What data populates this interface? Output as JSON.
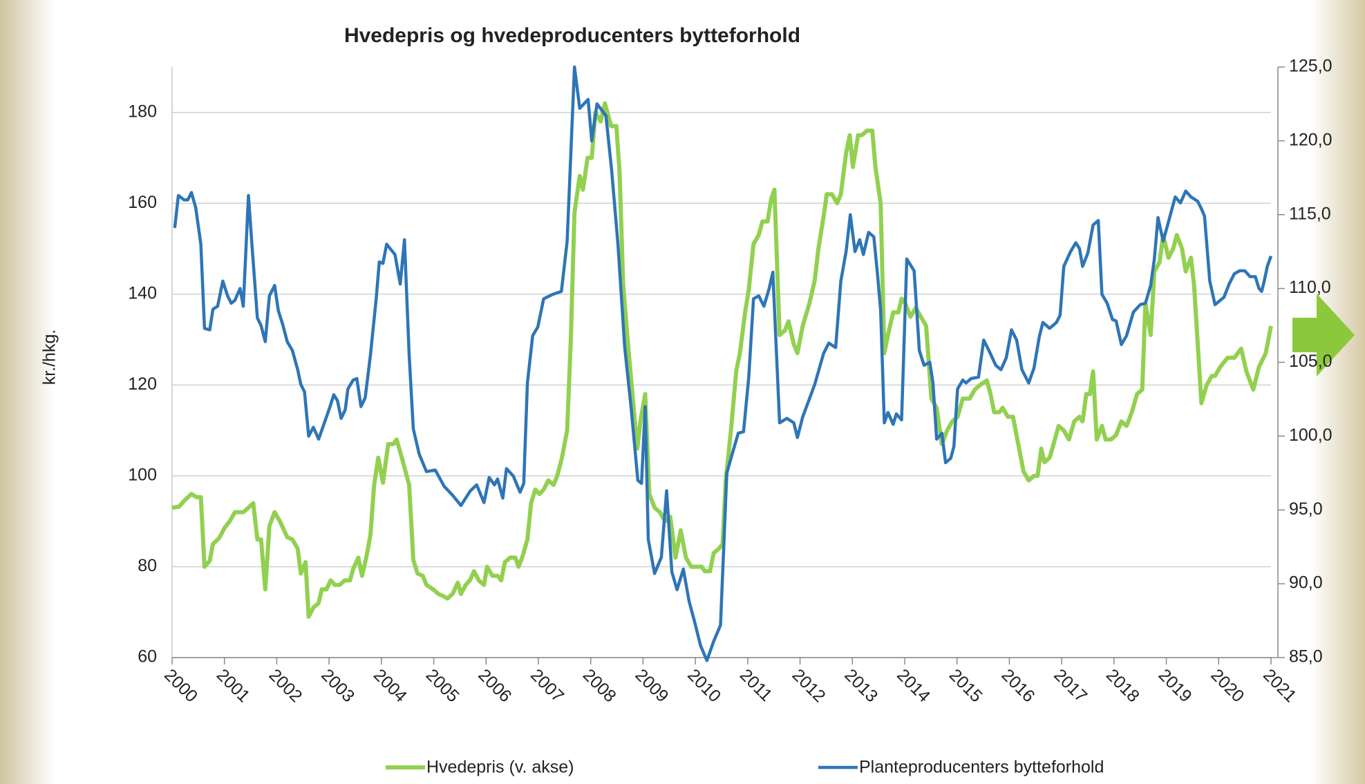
{
  "chart_data": {
    "type": "line",
    "title": "Hvedepris og hvedeproducenters bytteforhold",
    "y_label": "kr./hkg.",
    "xlim": [
      2000,
      2021
    ],
    "xticks": [
      2000,
      2001,
      2002,
      2003,
      2004,
      2005,
      2006,
      2007,
      2008,
      2009,
      2010,
      2011,
      2012,
      2013,
      2014,
      2015,
      2016,
      2017,
      2018,
      2019,
      2020,
      2021
    ],
    "ylim": [
      60,
      190
    ],
    "yticks": [
      60,
      80,
      100,
      120,
      140,
      160,
      180
    ],
    "y2lim": [
      85,
      125
    ],
    "y2ticks": [
      {
        "value": 85,
        "label": "85,0"
      },
      {
        "value": 90,
        "label": "90,0"
      },
      {
        "value": 95,
        "label": "95,0"
      },
      {
        "value": 100,
        "label": "100,0"
      },
      {
        "value": 105,
        "label": "105,0"
      },
      {
        "value": 110,
        "label": "110,0"
      },
      {
        "value": 115,
        "label": "115,0"
      },
      {
        "value": 120,
        "label": "120,0"
      },
      {
        "value": 125,
        "label": "125,0"
      }
    ],
    "grid": true,
    "series": [
      {
        "name": "Hvedepris (v. akse)",
        "color": "#92d050",
        "axis": "y",
        "x": [
          2000,
          2000.13,
          2000.23,
          2000.37,
          2000.47,
          2000.55,
          2000.62,
          2000.72,
          2000.78,
          2000.9,
          2001,
          2001.1,
          2001.2,
          2001.36,
          2001.46,
          2001.55,
          2001.63,
          2001.7,
          2001.78,
          2001.86,
          2001.96,
          2002.06,
          2002.2,
          2002.3,
          2002.4,
          2002.46,
          2002.55,
          2002.61,
          2002.7,
          2002.8,
          2002.86,
          2002.95,
          2003.03,
          2003.11,
          2003.2,
          2003.3,
          2003.4,
          2003.46,
          2003.56,
          2003.63,
          2003.71,
          2003.79,
          2003.86,
          2003.94,
          2004.03,
          2004.13,
          2004.23,
          2004.29,
          2004.39,
          2004.53,
          2004.61,
          2004.69,
          2004.79,
          2004.86,
          2004.99,
          2005.09,
          2005.19,
          2005.26,
          2005.36,
          2005.46,
          2005.52,
          2005.61,
          2005.69,
          2005.77,
          2005.86,
          2005.96,
          2006.02,
          2006.12,
          2006.22,
          2006.29,
          2006.36,
          2006.46,
          2006.56,
          2006.62,
          2006.69,
          2006.79,
          2006.86,
          2006.94,
          2007.02,
          2007.1,
          2007.19,
          2007.29,
          2007.36,
          2007.45,
          2007.55,
          2007.62,
          2007.69,
          2007.79,
          2007.85,
          2007.94,
          2008.02,
          2008.09,
          2008.19,
          2008.27,
          2008.39,
          2008.49,
          2008.55,
          2008.62,
          2008.72,
          2008.82,
          2008.89,
          2008.95,
          2009.04,
          2009.12,
          2009.22,
          2009.32,
          2009.42,
          2009.52,
          2009.62,
          2009.72,
          2009.82,
          2009.92,
          2010.02,
          2010.12,
          2010.18,
          2010.28,
          2010.35,
          2010.45,
          2010.52,
          2010.58,
          2010.68,
          2010.78,
          2010.85,
          2010.95,
          2011.02,
          2011.11,
          2011.21,
          2011.28,
          2011.38,
          2011.45,
          2011.51,
          2011.61,
          2011.71,
          2011.78,
          2011.88,
          2011.95,
          2012.05,
          2012.18,
          2012.28,
          2012.35,
          2012.45,
          2012.51,
          2012.61,
          2012.71,
          2012.78,
          2012.88,
          2012.95,
          2013.01,
          2013.11,
          2013.18,
          2013.28,
          2013.38,
          2013.44,
          2013.54,
          2013.61,
          2013.68,
          2013.78,
          2013.88,
          2013.94,
          2014.01,
          2014.11,
          2014.21,
          2014.31,
          2014.41,
          2014.51,
          2014.61,
          2014.71,
          2014.81,
          2014.91,
          2015.01,
          2015.11,
          2015.24,
          2015.34,
          2015.44,
          2015.57,
          2015.64,
          2015.71,
          2015.81,
          2015.87,
          2015.97,
          2016.07,
          2016.17,
          2016.27,
          2016.37,
          2016.47,
          2016.54,
          2016.61,
          2016.67,
          2016.77,
          2016.87,
          2016.94,
          2017.04,
          2017.14,
          2017.24,
          2017.34,
          2017.4,
          2017.47,
          2017.54,
          2017.6,
          2017.67,
          2017.77,
          2017.84,
          2017.94,
          2018.04,
          2018.14,
          2018.24,
          2018.34,
          2018.44,
          2018.54,
          2018.6,
          2018.7,
          2018.77,
          2018.87,
          2018.94,
          2019.04,
          2019.13,
          2019.2,
          2019.3,
          2019.37,
          2019.47,
          2019.53,
          2019.6,
          2019.67,
          2019.77,
          2019.87,
          2019.93,
          2020.03,
          2020.17,
          2020.3,
          2020.43,
          2020.53,
          2020.66,
          2020.77,
          2020.9,
          2021
        ],
        "values": [
          93,
          93.2,
          94.5,
          96,
          95.3,
          95.3,
          80,
          81.3,
          85,
          86.3,
          88.5,
          90,
          92,
          92,
          93,
          94,
          86,
          86,
          75,
          89,
          92,
          90,
          86.5,
          86,
          84,
          78.5,
          81,
          69,
          71,
          72,
          75,
          75,
          77,
          76,
          76,
          77,
          77,
          79.5,
          82,
          78,
          82,
          87,
          98,
          104,
          98.5,
          107,
          107,
          108,
          104,
          98,
          81.5,
          78.5,
          78,
          76,
          75,
          74,
          73.5,
          73,
          74,
          76.5,
          74,
          76,
          77,
          79,
          77,
          76,
          80,
          78,
          78,
          77,
          81,
          82,
          82,
          80,
          82,
          86,
          94,
          97,
          96,
          97,
          99,
          98,
          100,
          104,
          110,
          130,
          158,
          166,
          163,
          170,
          170,
          180,
          178,
          182,
          177,
          177,
          167,
          142,
          128,
          115,
          106,
          112,
          118,
          96,
          93,
          92,
          90,
          91,
          82,
          88,
          82,
          80,
          80,
          80,
          79,
          79,
          83,
          84,
          85,
          99,
          110,
          123,
          127,
          136,
          141,
          151,
          153,
          156,
          156,
          161,
          163,
          131,
          132,
          134,
          129,
          127,
          133,
          138,
          143,
          150,
          157,
          162,
          162,
          160,
          162,
          171,
          175,
          168,
          175,
          175,
          176,
          176,
          168,
          160,
          127,
          131,
          136,
          136,
          139,
          138,
          135,
          137,
          135,
          133,
          117,
          115,
          107,
          110,
          112,
          113,
          117,
          117,
          119,
          120,
          121,
          118,
          114,
          114,
          115,
          113,
          113,
          107,
          101,
          99,
          100,
          100,
          106,
          103,
          104,
          108,
          111,
          110,
          108,
          112,
          113,
          112,
          118,
          118,
          123,
          108,
          111,
          108,
          108,
          109,
          112,
          111,
          114,
          118,
          119,
          138,
          131,
          145,
          147,
          153,
          148,
          150,
          153,
          150,
          145,
          148,
          142,
          129,
          116,
          120,
          122,
          122,
          124,
          126,
          126,
          128,
          123,
          119,
          124,
          127,
          133
        ]
      },
      {
        "name": "Planteproducenters bytteforhold",
        "color": "#2e75b6",
        "axis": "y2",
        "x": [
          2000.05,
          2000.12,
          2000.23,
          2000.3,
          2000.37,
          2000.45,
          2000.55,
          2000.62,
          2000.72,
          2000.78,
          2000.87,
          2000.97,
          2001.06,
          2001.13,
          2001.2,
          2001.3,
          2001.36,
          2001.46,
          2001.53,
          2001.63,
          2001.7,
          2001.78,
          2001.86,
          2001.96,
          2002.03,
          2002.11,
          2002.2,
          2002.3,
          2002.4,
          2002.46,
          2002.53,
          2002.61,
          2002.7,
          2002.8,
          2002.9,
          2003,
          2003.09,
          2003.16,
          2003.23,
          2003.31,
          2003.36,
          2003.46,
          2003.53,
          2003.61,
          2003.69,
          2003.79,
          2003.9,
          2003.96,
          2004.03,
          2004.1,
          2004.26,
          2004.36,
          2004.44,
          2004.53,
          2004.61,
          2004.72,
          2004.86,
          2005.03,
          2005.2,
          2005.36,
          2005.52,
          2005.7,
          2005.82,
          2005.96,
          2006.06,
          2006.16,
          2006.22,
          2006.32,
          2006.39,
          2006.52,
          2006.65,
          2006.72,
          2006.79,
          2006.89,
          2006.99,
          2007.1,
          2007.27,
          2007.44,
          2007.55,
          2007.69,
          2007.79,
          2007.95,
          2008.02,
          2008.12,
          2008.29,
          2008.4,
          2008.52,
          2008.65,
          2008.77,
          2008.9,
          2008.97,
          2009.04,
          2009.1,
          2009.22,
          2009.35,
          2009.45,
          2009.55,
          2009.65,
          2009.77,
          2009.88,
          2009.98,
          2010.1,
          2010.22,
          2010.35,
          2010.48,
          2010.6,
          2010.72,
          2010.82,
          2010.92,
          2011.02,
          2011.11,
          2011.21,
          2011.31,
          2011.41,
          2011.48,
          2011.61,
          2011.75,
          2011.88,
          2011.95,
          2012.05,
          2012.28,
          2012.45,
          2012.55,
          2012.68,
          2012.78,
          2012.88,
          2012.96,
          2013.05,
          2013.14,
          2013.21,
          2013.31,
          2013.41,
          2013.48,
          2013.54,
          2013.61,
          2013.68,
          2013.78,
          2013.84,
          2013.94,
          2014.04,
          2014.18,
          2014.28,
          2014.37,
          2014.48,
          2014.54,
          2014.61,
          2014.71,
          2014.78,
          2014.88,
          2014.94,
          2015.01,
          2015.11,
          2015.17,
          2015.27,
          2015.41,
          2015.51,
          2015.61,
          2015.74,
          2015.84,
          2015.94,
          2016.04,
          2016.14,
          2016.24,
          2016.37,
          2016.47,
          2016.57,
          2016.64,
          2016.77,
          2016.9,
          2016.97,
          2017.04,
          2017.17,
          2017.27,
          2017.34,
          2017.4,
          2017.5,
          2017.6,
          2017.7,
          2017.77,
          2017.87,
          2017.97,
          2018.04,
          2018.14,
          2018.24,
          2018.37,
          2018.5,
          2018.6,
          2018.7,
          2018.77,
          2018.84,
          2018.94,
          2019.04,
          2019.17,
          2019.27,
          2019.37,
          2019.47,
          2019.6,
          2019.67,
          2019.73,
          2019.83,
          2019.93,
          2020.03,
          2020.1,
          2020.2,
          2020.3,
          2020.4,
          2020.5,
          2020.6,
          2020.7,
          2020.77,
          2020.82,
          2020.87,
          2020.93,
          2021
        ],
        "values": [
          114.1,
          116.3,
          116,
          116,
          116.5,
          115.5,
          113,
          107.3,
          107.2,
          108.6,
          108.8,
          110.5,
          109.5,
          109,
          109.2,
          110,
          108.8,
          116.3,
          112.8,
          108,
          107.5,
          106.4,
          109.5,
          110.2,
          108.5,
          107.6,
          106.4,
          105.8,
          104.5,
          103.5,
          103,
          100,
          100.6,
          99.8,
          100.8,
          101.8,
          102.8,
          102.4,
          101.2,
          101.8,
          103.2,
          103.8,
          103.9,
          102,
          102.6,
          105.5,
          109.3,
          111.8,
          111.7,
          113,
          112.3,
          110.3,
          113.3,
          105.5,
          100.5,
          98.8,
          97.6,
          97.7,
          96.6,
          96,
          95.3,
          96.3,
          96.7,
          95.5,
          97.2,
          96.7,
          97.1,
          95.8,
          97.8,
          97.3,
          96.2,
          96.8,
          103.6,
          106.8,
          107.4,
          109.3,
          109.6,
          109.8,
          113.2,
          125,
          122.2,
          122.8,
          120,
          122.5,
          121.7,
          118,
          113,
          106,
          102,
          97,
          96.8,
          102,
          93,
          90.7,
          91.8,
          96.3,
          90.8,
          89.6,
          91,
          88.8,
          87.5,
          85.8,
          84.8,
          86.1,
          87.2,
          97.5,
          99,
          100.2,
          100.3,
          104,
          109.3,
          109.5,
          108.8,
          110,
          111.1,
          100.9,
          101.2,
          100.9,
          99.9,
          101.3,
          103.5,
          105.6,
          106.3,
          106,
          110.5,
          112.5,
          115,
          112.5,
          113.3,
          112.3,
          113.8,
          113.5,
          111,
          108.5,
          100.9,
          101.6,
          100.8,
          101.5,
          101.1,
          112,
          111.2,
          105.8,
          104.8,
          105,
          103.6,
          99.8,
          100.2,
          98.2,
          98.5,
          99.3,
          103.2,
          103.8,
          103.6,
          103.9,
          104,
          106.5,
          105.8,
          104.8,
          104.5,
          105.3,
          107.2,
          106.5,
          104.5,
          103.6,
          104.6,
          106.7,
          107.7,
          107.3,
          107.7,
          108.2,
          111.5,
          112.5,
          113.1,
          112.7,
          111.5,
          112.4,
          114.3,
          114.6,
          109.6,
          109,
          107.9,
          107.8,
          106.2,
          106.8,
          108.4,
          108.9,
          109,
          110.2,
          112,
          114.8,
          113.2,
          114.5,
          116.2,
          115.8,
          116.6,
          116.2,
          115.9,
          115.4,
          114.9,
          110.5,
          108.9,
          109.2,
          109.4,
          110.3,
          111,
          111.2,
          111.2,
          110.8,
          110.8,
          110,
          109.8,
          110.5,
          111.5,
          112.2
        ]
      }
    ]
  }
}
